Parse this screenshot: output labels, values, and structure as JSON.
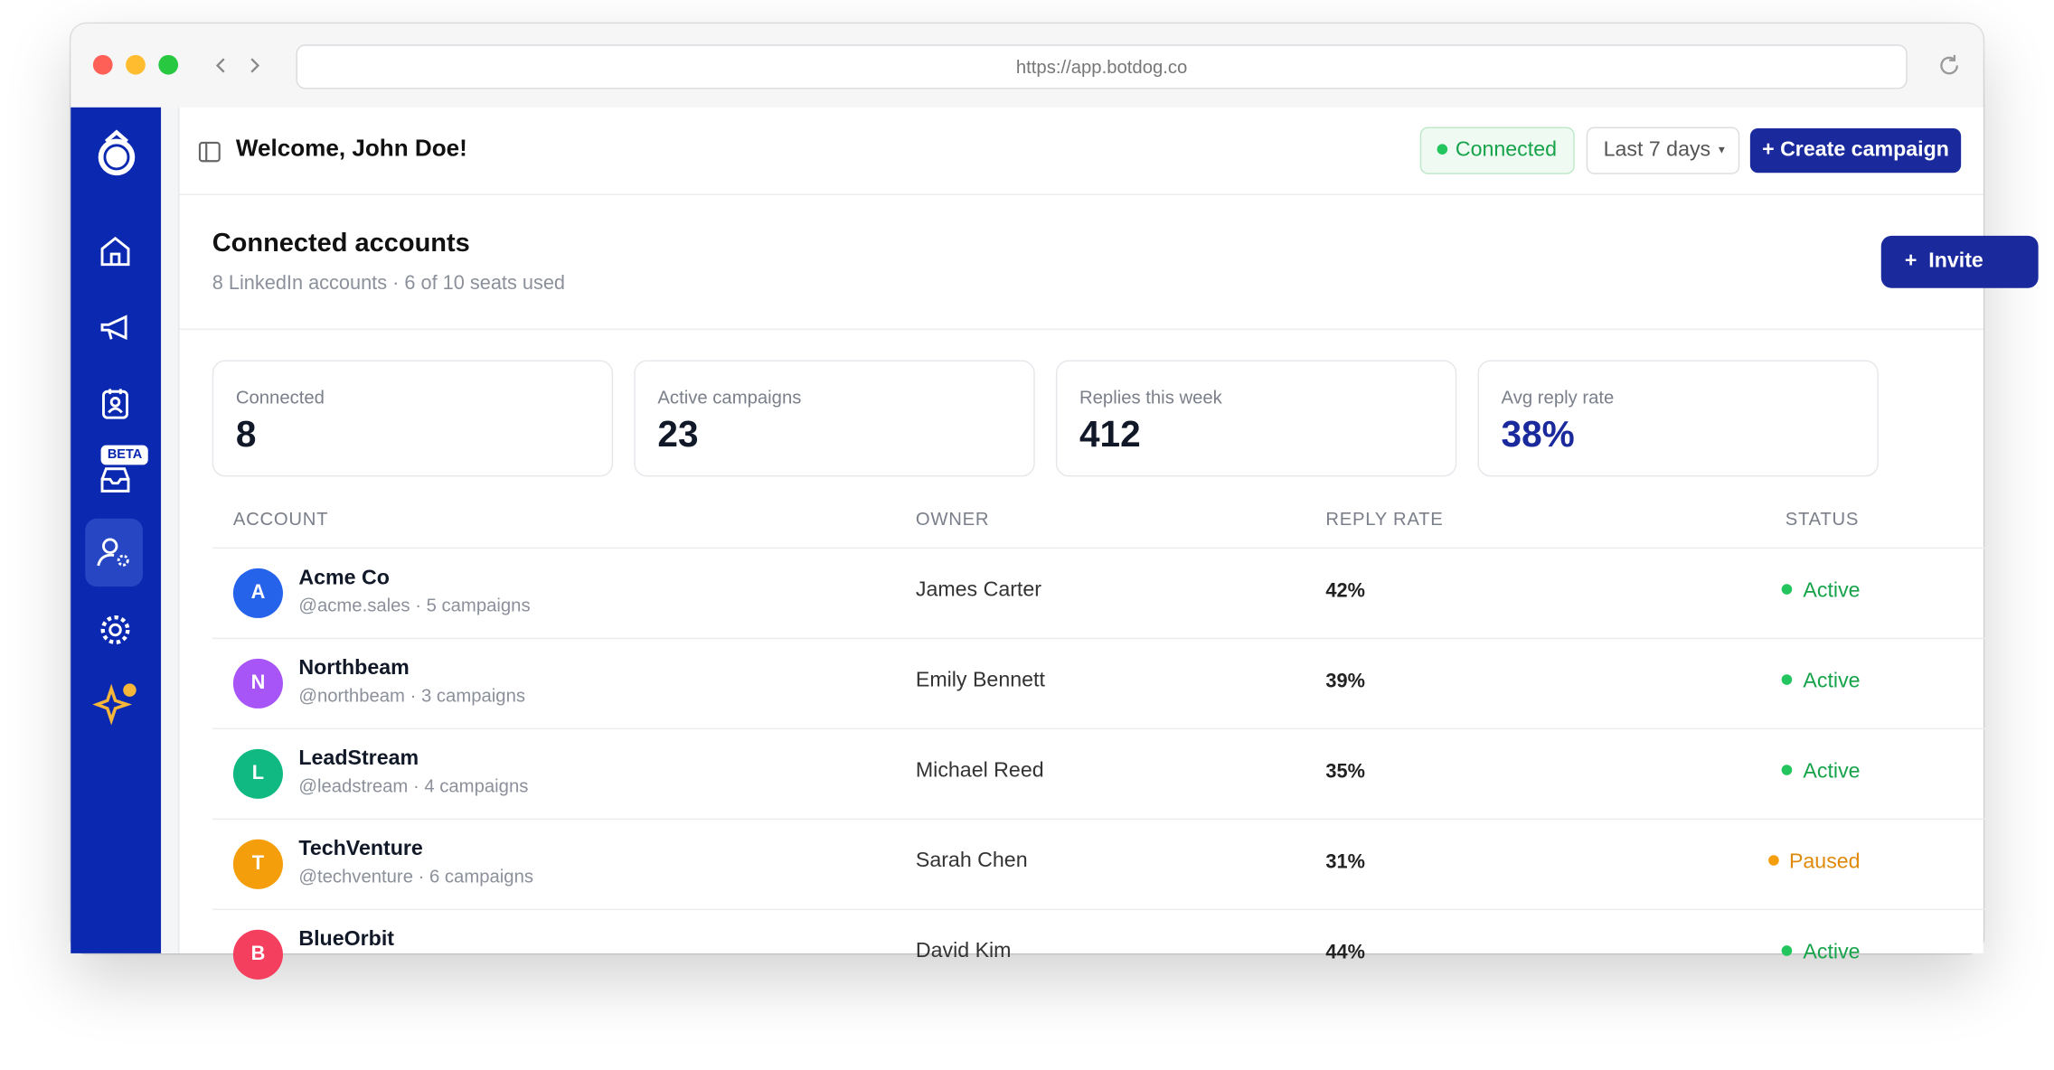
{
  "url": "https://app.botdog.co",
  "sidebar": {
    "badge": "BETA"
  },
  "header": {
    "title": "Welcome, John Doe!",
    "status": "Connected",
    "range": "Last 7 days",
    "cta": "+ Create campaign"
  },
  "section": {
    "title": "Connected accounts",
    "subtitle": "8 LinkedIn accounts · 6 of 10 seats used",
    "invite": "+  Invite"
  },
  "stats": [
    {
      "label": "Connected",
      "value": "8"
    },
    {
      "label": "Active campaigns",
      "value": "23"
    },
    {
      "label": "Replies this week",
      "value": "412"
    },
    {
      "label": "Avg reply rate",
      "value": "38%"
    }
  ],
  "table": {
    "columns": [
      "ACCOUNT",
      "OWNER",
      "REPLY RATE",
      "STATUS"
    ],
    "rows": [
      {
        "initial": "A",
        "name": "Acme Co",
        "handle": "@acme.sales · 5 campaigns",
        "owner": "James Carter",
        "rate": "42%",
        "status": "Active"
      },
      {
        "initial": "N",
        "name": "Northbeam",
        "handle": "@northbeam · 3 campaigns",
        "owner": "Emily Bennett",
        "rate": "39%",
        "status": "Active"
      },
      {
        "initial": "L",
        "name": "LeadStream",
        "handle": "@leadstream · 4 campaigns",
        "owner": "Michael Reed",
        "rate": "35%",
        "status": "Active"
      },
      {
        "initial": "T",
        "name": "TechVenture",
        "handle": "@techventure · 6 campaigns",
        "owner": "Sarah Chen",
        "rate": "31%",
        "status": "Paused"
      },
      {
        "initial": "B",
        "name": "BlueOrbit",
        "owner": "David Kim",
        "rate": "44%",
        "status": "Active"
      }
    ]
  }
}
